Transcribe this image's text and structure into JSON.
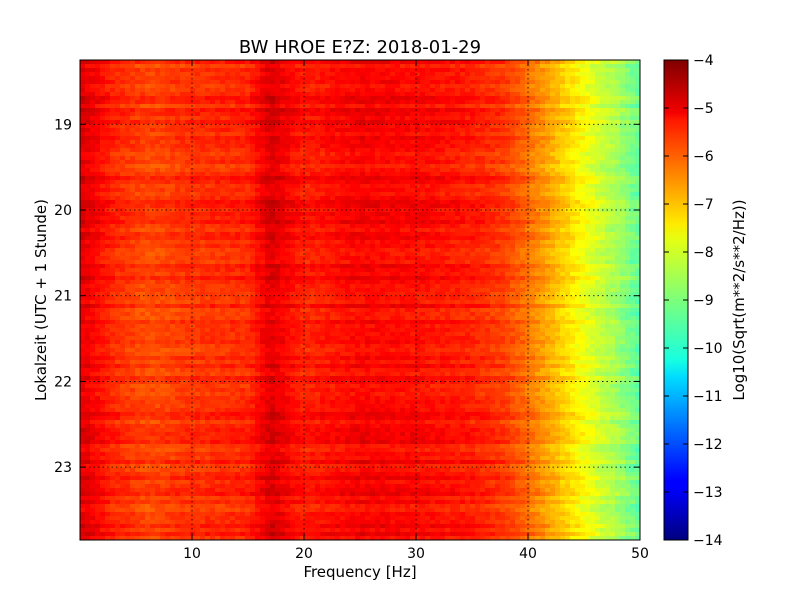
{
  "chart_data": {
    "type": "heatmap",
    "title": "BW HROE E?Z: 2018-01-29",
    "xlabel": "Frequency [Hz]",
    "ylabel": "Lokalzeit (UTC + 1 Stunde)",
    "xlim": [
      0,
      50
    ],
    "ylim": [
      18.25,
      23.85
    ],
    "x_ticks": [
      10,
      20,
      30,
      40,
      50
    ],
    "y_ticks": [
      19,
      20,
      21,
      22,
      23
    ],
    "y_axis_inverted": true,
    "grid": true,
    "colormap": "jet",
    "colorbar": {
      "label": "Log10(Sqrt(m**2/s**2/Hz))",
      "range": [
        -14,
        -4
      ],
      "ticks": [
        -4,
        -5,
        -6,
        -7,
        -8,
        -9,
        -10,
        -11,
        -12,
        -13,
        -14
      ]
    },
    "spectrum_profile": {
      "frequency_hz": [
        0.5,
        3,
        6,
        10,
        15,
        17,
        20,
        25,
        30,
        35,
        38,
        40,
        42,
        44,
        46,
        48,
        50
      ],
      "log10_amplitude": [
        -5.0,
        -5.6,
        -5.9,
        -5.7,
        -5.6,
        -4.9,
        -5.5,
        -5.2,
        -5.3,
        -5.5,
        -5.8,
        -6.3,
        -6.9,
        -7.5,
        -8.1,
        -8.6,
        -9.3
      ]
    }
  }
}
